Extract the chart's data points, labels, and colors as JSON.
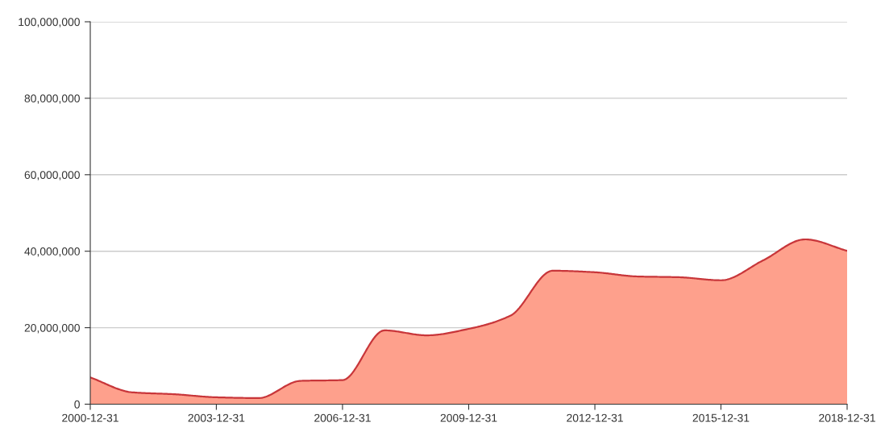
{
  "chart_data": {
    "type": "area",
    "x": [
      "2000-12-31",
      "2001-12-31",
      "2002-12-31",
      "2003-12-31",
      "2004-12-31",
      "2005-12-31",
      "2006-12-31",
      "2007-12-31",
      "2008-12-31",
      "2009-12-31",
      "2010-12-31",
      "2011-12-31",
      "2012-12-31",
      "2013-12-31",
      "2014-12-31",
      "2015-12-31",
      "2016-12-31",
      "2017-12-31",
      "2018-12-31"
    ],
    "series": [
      {
        "color": "#c8363a",
        "values": [
          7000000,
          3100000,
          2600000,
          1800000,
          1600000,
          6100000,
          6300000,
          19300000,
          18000000,
          19700000,
          23200000,
          34900000,
          34500000,
          33400000,
          33200000,
          32400000,
          37600000,
          43100000,
          40100000
        ]
      }
    ],
    "xlim": [
      "2000-12-31",
      "2018-12-31"
    ],
    "xticks": [
      "2000-12-31",
      "2003-12-31",
      "2006-12-31",
      "2009-12-31",
      "2012-12-31",
      "2015-12-31",
      "2018-12-31"
    ],
    "ylim": [
      0,
      100000000
    ],
    "yticks": [
      0,
      {
        "value": 20000000,
        "label": "20,000,000"
      },
      {
        "value": 40000000,
        "label": "40,000,000"
      },
      {
        "value": 60000000,
        "label": "60,000,000"
      },
      {
        "value": 80000000,
        "label": "80,000,000"
      },
      {
        "value": 100000000,
        "label": "100,000,000"
      }
    ],
    "grid": "y",
    "legend": false,
    "marker": "none",
    "line_style": "solid"
  }
}
